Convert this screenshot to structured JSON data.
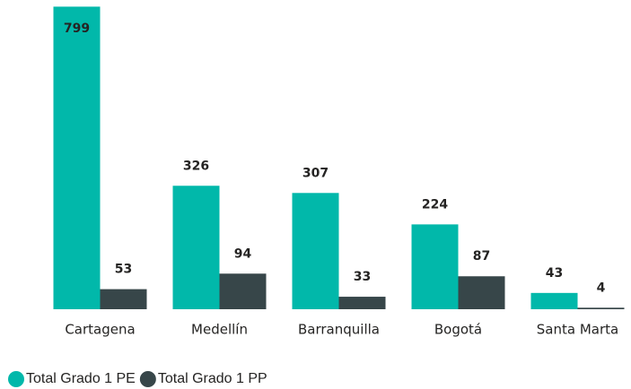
{
  "chart_data": {
    "type": "bar",
    "categories": [
      "Cartagena",
      "Medellín",
      "Barranquilla",
      "Bogotá",
      "Santa Marta"
    ],
    "series": [
      {
        "name": "Total Grado 1 PE",
        "color": "#01b8aa",
        "values": [
          799,
          326,
          307,
          224,
          43
        ]
      },
      {
        "name": "Total Grado 1 PP",
        "color": "#374649",
        "values": [
          53,
          94,
          33,
          87,
          4
        ]
      }
    ],
    "ylim": [
      0,
      800
    ],
    "legend": "bottom-left"
  }
}
